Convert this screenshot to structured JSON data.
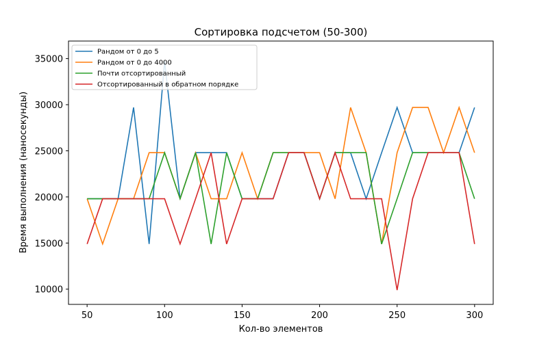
{
  "chart_data": {
    "type": "line",
    "title": "Сортировка подсчетом (50-300)",
    "xlabel": "Кол-во элементов",
    "ylabel": "Время выполнения (наносекунды)",
    "x": [
      50,
      60,
      70,
      80,
      90,
      100,
      110,
      120,
      130,
      140,
      150,
      160,
      170,
      180,
      190,
      200,
      210,
      220,
      230,
      240,
      250,
      260,
      270,
      280,
      290,
      300
    ],
    "xlim": [
      38,
      312
    ],
    "ylim": [
      8350,
      36900
    ],
    "xticks": [
      50,
      100,
      150,
      200,
      250,
      300
    ],
    "yticks": [
      10000,
      15000,
      20000,
      25000,
      30000,
      35000
    ],
    "grid": false,
    "legend_position": "top-left",
    "series": [
      {
        "name": "Рандом от 0 до 5",
        "color": "#1f77b4",
        "values": [
          19800,
          19800,
          19800,
          29700,
          14900,
          34700,
          19800,
          24800,
          24800,
          24800,
          19800,
          19800,
          19800,
          24800,
          24800,
          19800,
          24800,
          24800,
          19800,
          24800,
          29700,
          24800,
          24800,
          24800,
          24800,
          29700
        ]
      },
      {
        "name": "Рандом от 0 до 4000",
        "color": "#ff7f0e",
        "values": [
          19800,
          14900,
          19800,
          19800,
          24800,
          24800,
          19800,
          24800,
          19800,
          19800,
          24800,
          19800,
          24800,
          24800,
          24800,
          24800,
          19800,
          29700,
          24800,
          14900,
          24800,
          29700,
          29700,
          24800,
          29700,
          24800
        ]
      },
      {
        "name": "Почти отсортированный",
        "color": "#2ca02c",
        "values": [
          19800,
          19800,
          19800,
          19800,
          19800,
          24800,
          19800,
          24800,
          14900,
          24800,
          19800,
          19800,
          24800,
          24800,
          24800,
          19800,
          24800,
          24800,
          24800,
          14900,
          19800,
          24800,
          24800,
          24800,
          24800,
          19800
        ]
      },
      {
        "name": "Отсортированный в обратном порядке",
        "color": "#d62728",
        "values": [
          14900,
          19800,
          19800,
          19800,
          19800,
          19800,
          14900,
          19800,
          24800,
          14900,
          19800,
          19800,
          19800,
          24800,
          24800,
          19800,
          24800,
          19800,
          19800,
          19800,
          9900,
          19800,
          24800,
          24800,
          24800,
          14900
        ]
      }
    ]
  }
}
